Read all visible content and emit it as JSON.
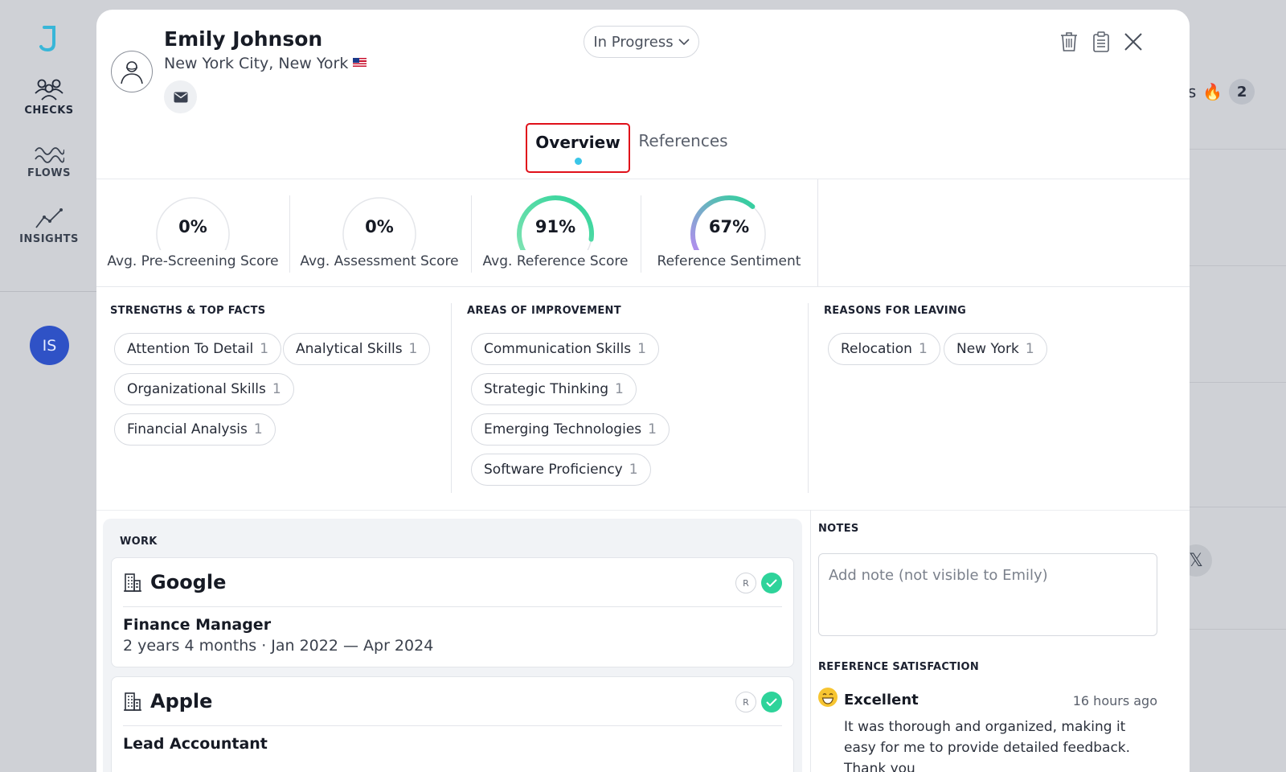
{
  "sidebar": {
    "items": [
      {
        "label": "CHECKS",
        "icon": "people-icon"
      },
      {
        "label": "FLOWS",
        "icon": "waves-icon"
      },
      {
        "label": "INSIGHTS",
        "icon": "trend-icon"
      }
    ],
    "user_initials": "IS"
  },
  "background": {
    "badge_text": "ts",
    "badge_emoji": "🔥",
    "badge_count": "2"
  },
  "candidate": {
    "name": "Emily Johnson",
    "location": "New York City, New York"
  },
  "status": {
    "selected": "In Progress"
  },
  "tabs": [
    {
      "label": "Overview",
      "active": true
    },
    {
      "label": "References",
      "active": false
    }
  ],
  "metrics": [
    {
      "value": "0%",
      "label": "Avg. Pre-Screening Score",
      "fraction": 0
    },
    {
      "value": "0%",
      "label": "Avg. Assessment Score",
      "fraction": 0
    },
    {
      "value": "91%",
      "label": "Avg. Reference Score",
      "fraction": 0.91
    },
    {
      "value": "67%",
      "label": "Reference Sentiment",
      "fraction": 0.67
    }
  ],
  "strengths": {
    "title": "STRENGTHS & TOP FACTS",
    "items": [
      {
        "label": "Attention To Detail",
        "count": "1"
      },
      {
        "label": "Analytical Skills",
        "count": "1"
      },
      {
        "label": "Organizational Skills",
        "count": "1"
      },
      {
        "label": "Financial Analysis",
        "count": "1"
      }
    ]
  },
  "improvement": {
    "title": "AREAS OF IMPROVEMENT",
    "items": [
      {
        "label": "Communication Skills",
        "count": "1"
      },
      {
        "label": "Strategic Thinking",
        "count": "1"
      },
      {
        "label": "Emerging Technologies",
        "count": "1"
      },
      {
        "label": "Software Proficiency",
        "count": "1"
      }
    ]
  },
  "leaving": {
    "title": "REASONS FOR LEAVING",
    "items": [
      {
        "label": "Relocation",
        "count": "1"
      },
      {
        "label": "New York",
        "count": "1"
      }
    ]
  },
  "work": {
    "title": "WORK",
    "entries": [
      {
        "company": "Google",
        "role": "Finance Manager",
        "duration": "2 years 4 months · Jan 2022 — Apr 2024",
        "badge": "R"
      },
      {
        "company": "Apple",
        "role": "Lead Accountant",
        "duration": "",
        "badge": "R"
      }
    ]
  },
  "notes": {
    "title": "NOTES",
    "placeholder": "Add note (not visible to Emily)"
  },
  "satisfaction": {
    "title": "REFERENCE SATISFACTION",
    "rating": "Excellent",
    "time": "16 hours ago",
    "comment": "It was thorough and organized, making it easy for me to provide detailed feedback. Thank you"
  },
  "colors": {
    "accent": "#3ac6e8",
    "success": "#2ed39a",
    "highlight": "#e0101a",
    "gauge_green": "#2ed39a",
    "gauge_purple": "#b58cf0"
  }
}
